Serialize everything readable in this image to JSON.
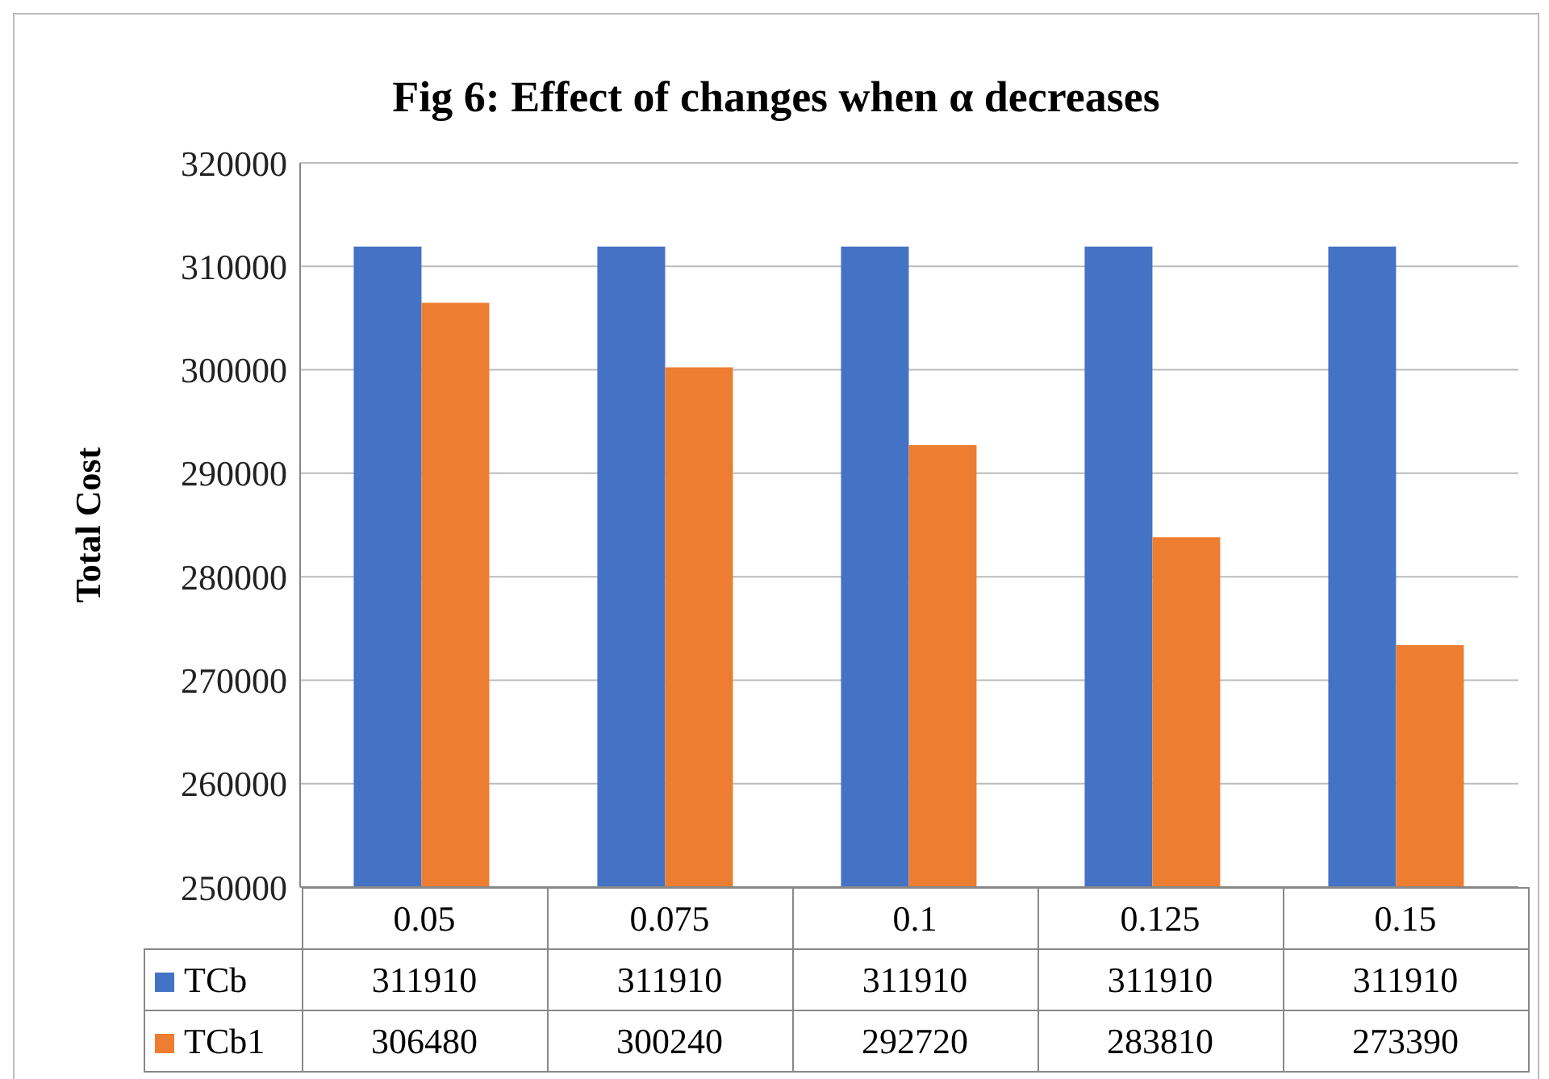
{
  "chart_data": {
    "type": "bar",
    "title": "Fig 6: Effect of changes when α decreases",
    "ylabel": "Total Cost",
    "categories": [
      "0.05",
      "0.075",
      "0.1",
      "0.125",
      "0.15"
    ],
    "series": [
      {
        "name": "TCb",
        "color": "#4472c4",
        "values": [
          311910,
          311910,
          311910,
          311910,
          311910
        ]
      },
      {
        "name": "TCb1",
        "color": "#ed7d31",
        "values": [
          306480,
          300240,
          292720,
          283810,
          273390
        ]
      }
    ],
    "ylim": [
      250000,
      320000
    ],
    "yticks": [
      250000,
      260000,
      270000,
      280000,
      290000,
      300000,
      310000,
      320000
    ],
    "grid": "y",
    "legend": "bottom",
    "data_labels": true
  }
}
